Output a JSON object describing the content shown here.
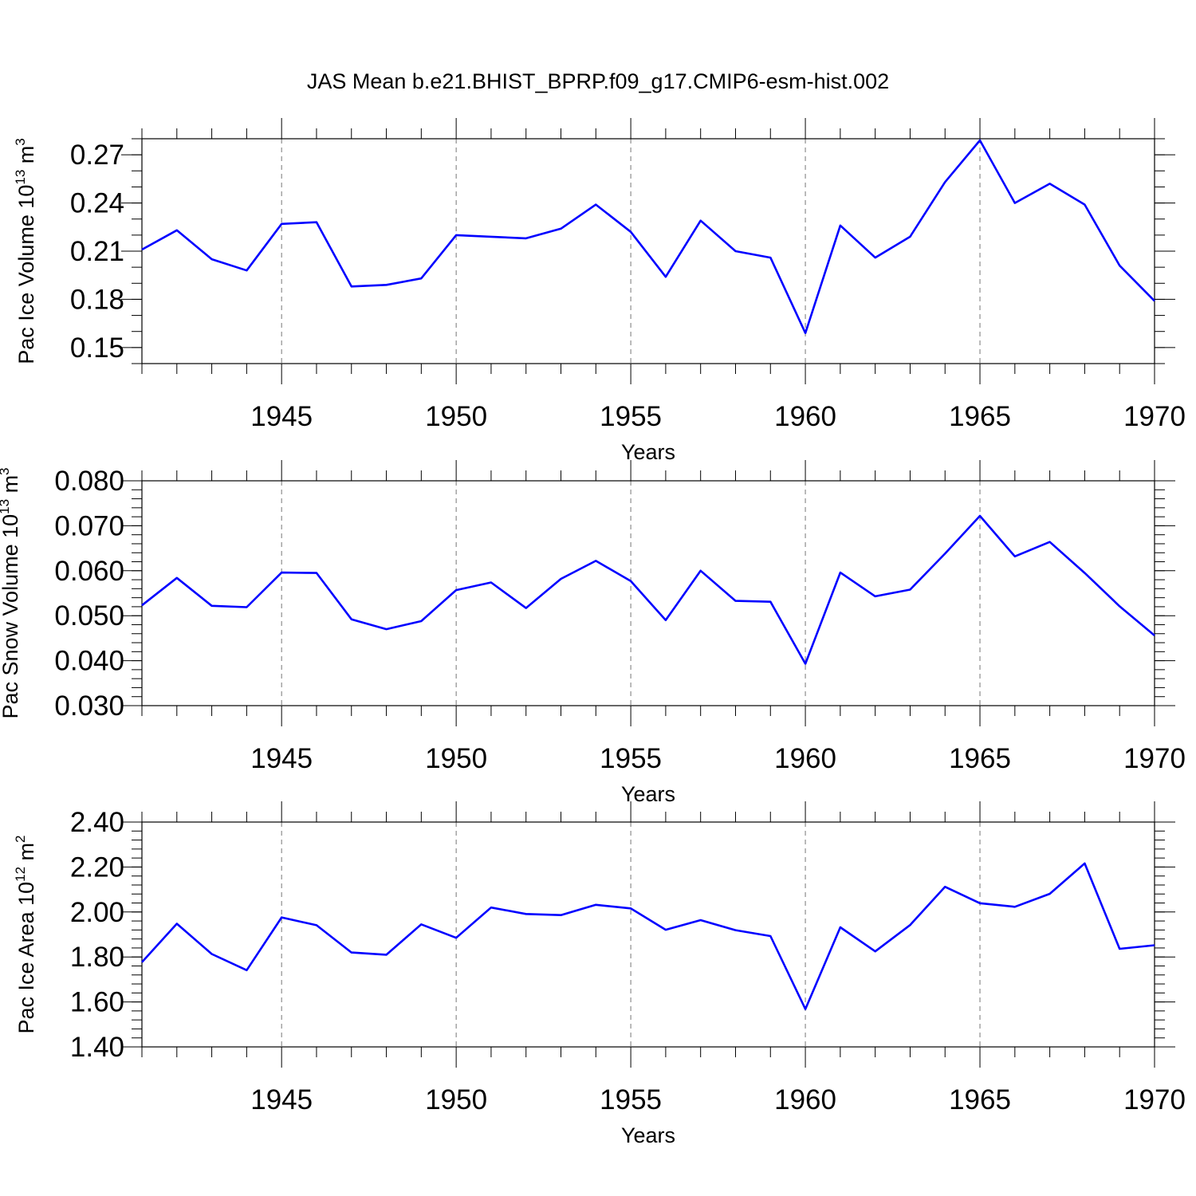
{
  "title": "JAS Mean b.e21.BHIST_BPRP.f09_g17.CMIP6-esm-hist.002",
  "colors": {
    "line": "#0000ff",
    "axis": "#000000",
    "grid": "#777777"
  },
  "chart_data": [
    {
      "type": "line",
      "title": "",
      "xlabel": "Years",
      "ylabel": {
        "prefix": "Pac Ice Volume 10",
        "exp": "13",
        "mid": " m",
        "unit_exp": "3"
      },
      "xlim": [
        1941,
        1970
      ],
      "ylim": [
        0.14,
        0.28
      ],
      "xticks": [
        1945,
        1950,
        1955,
        1960,
        1965,
        1970
      ],
      "yticks": [
        0.15,
        0.18,
        0.21,
        0.24,
        0.27
      ],
      "yticklabels": [
        "0.15",
        "0.18",
        "0.21",
        "0.24",
        "0.27"
      ],
      "yminor_step": 0.01,
      "x": [
        1941,
        1942,
        1943,
        1944,
        1945,
        1946,
        1947,
        1948,
        1949,
        1950,
        1951,
        1952,
        1953,
        1954,
        1955,
        1956,
        1957,
        1958,
        1959,
        1960,
        1961,
        1962,
        1963,
        1964,
        1965,
        1966,
        1967,
        1968,
        1969,
        1970
      ],
      "series": [
        {
          "name": "Pac Ice Volume",
          "values": [
            0.211,
            0.223,
            0.205,
            0.198,
            0.227,
            0.228,
            0.188,
            0.189,
            0.193,
            0.22,
            0.219,
            0.218,
            0.224,
            0.239,
            0.222,
            0.194,
            0.229,
            0.21,
            0.206,
            0.159,
            0.226,
            0.206,
            0.219,
            0.253,
            0.279,
            0.24,
            0.252,
            0.239,
            0.201,
            0.179
          ]
        }
      ]
    },
    {
      "type": "line",
      "title": "",
      "xlabel": "Years",
      "ylabel": {
        "prefix": "Pac Snow Volume 10",
        "exp": "13",
        "mid": " m",
        "unit_exp": "3"
      },
      "xlim": [
        1941,
        1970
      ],
      "ylim": [
        0.03,
        0.08
      ],
      "xticks": [
        1945,
        1950,
        1955,
        1960,
        1965,
        1970
      ],
      "yticks": [
        0.03,
        0.04,
        0.05,
        0.06,
        0.07,
        0.08
      ],
      "yticklabels": [
        "0.030",
        "0.040",
        "0.050",
        "0.060",
        "0.070",
        "0.080"
      ],
      "yminor_step": 0.002,
      "x": [
        1941,
        1942,
        1943,
        1944,
        1945,
        1946,
        1947,
        1948,
        1949,
        1950,
        1951,
        1952,
        1953,
        1954,
        1955,
        1956,
        1957,
        1958,
        1959,
        1960,
        1961,
        1962,
        1963,
        1964,
        1965,
        1966,
        1967,
        1968,
        1969,
        1970
      ],
      "series": [
        {
          "name": "Pac Snow Volume",
          "values": [
            0.0523,
            0.0584,
            0.0522,
            0.0519,
            0.0596,
            0.0595,
            0.0492,
            0.047,
            0.0488,
            0.0557,
            0.0574,
            0.0517,
            0.0582,
            0.0622,
            0.0577,
            0.049,
            0.06,
            0.0533,
            0.0531,
            0.0393,
            0.0596,
            0.0543,
            0.0558,
            0.0638,
            0.0722,
            0.0632,
            0.0664,
            0.0595,
            0.0521,
            0.0456
          ]
        }
      ]
    },
    {
      "type": "line",
      "title": "",
      "xlabel": "Years",
      "ylabel": {
        "prefix": "Pac Ice Area 10",
        "exp": "12",
        "mid": " m",
        "unit_exp": "2"
      },
      "xlim": [
        1941,
        1970
      ],
      "ylim": [
        1.4,
        2.4
      ],
      "xticks": [
        1945,
        1950,
        1955,
        1960,
        1965,
        1970
      ],
      "yticks": [
        1.4,
        1.6,
        1.8,
        2.0,
        2.2,
        2.4
      ],
      "yticklabels": [
        "1.40",
        "1.60",
        "1.80",
        "2.00",
        "2.20",
        "2.40"
      ],
      "yminor_step": 0.04,
      "x": [
        1941,
        1942,
        1943,
        1944,
        1945,
        1946,
        1947,
        1948,
        1949,
        1950,
        1951,
        1952,
        1953,
        1954,
        1955,
        1956,
        1957,
        1958,
        1959,
        1960,
        1961,
        1962,
        1963,
        1964,
        1965,
        1966,
        1967,
        1968,
        1969,
        1970
      ],
      "series": [
        {
          "name": "Pac Ice Area",
          "values": [
            1.777,
            1.948,
            1.813,
            1.741,
            1.976,
            1.941,
            1.82,
            1.81,
            1.945,
            1.885,
            2.02,
            1.991,
            1.986,
            2.032,
            2.016,
            1.921,
            1.964,
            1.919,
            1.893,
            1.568,
            1.932,
            1.825,
            1.942,
            2.112,
            2.039,
            2.023,
            2.081,
            2.216,
            1.836,
            1.852
          ]
        }
      ]
    }
  ]
}
